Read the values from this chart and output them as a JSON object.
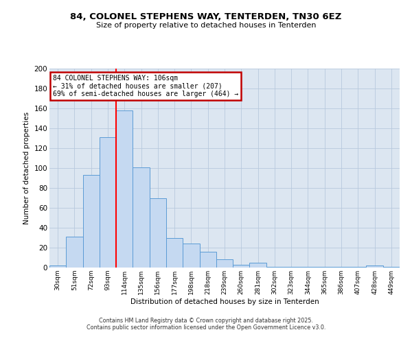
{
  "title_line1": "84, COLONEL STEPHENS WAY, TENTERDEN, TN30 6EZ",
  "title_line2": "Size of property relative to detached houses in Tenterden",
  "xlabel": "Distribution of detached houses by size in Tenterden",
  "ylabel": "Number of detached properties",
  "bar_labels": [
    "30sqm",
    "51sqm",
    "72sqm",
    "93sqm",
    "114sqm",
    "135sqm",
    "156sqm",
    "177sqm",
    "198sqm",
    "218sqm",
    "239sqm",
    "260sqm",
    "281sqm",
    "302sqm",
    "323sqm",
    "344sqm",
    "365sqm",
    "386sqm",
    "407sqm",
    "428sqm",
    "449sqm"
  ],
  "bar_values": [
    2,
    31,
    93,
    131,
    158,
    101,
    70,
    30,
    24,
    16,
    8,
    3,
    5,
    1,
    1,
    1,
    1,
    1,
    1,
    2,
    1
  ],
  "bar_color": "#c5d9f1",
  "bar_edge_color": "#5b9bd5",
  "red_line_index": 3.5,
  "annotation_title": "84 COLONEL STEPHENS WAY: 106sqm",
  "annotation_line1": "← 31% of detached houses are smaller (207)",
  "annotation_line2": "69% of semi-detached houses are larger (464) →",
  "annotation_box_edge": "#c00000",
  "ylim": [
    0,
    200
  ],
  "yticks": [
    0,
    20,
    40,
    60,
    80,
    100,
    120,
    140,
    160,
    180,
    200
  ],
  "background_color": "#ffffff",
  "plot_bg_color": "#dce6f1",
  "grid_color": "#b8c9dd",
  "footer_line1": "Contains HM Land Registry data © Crown copyright and database right 2025.",
  "footer_line2": "Contains public sector information licensed under the Open Government Licence v3.0."
}
